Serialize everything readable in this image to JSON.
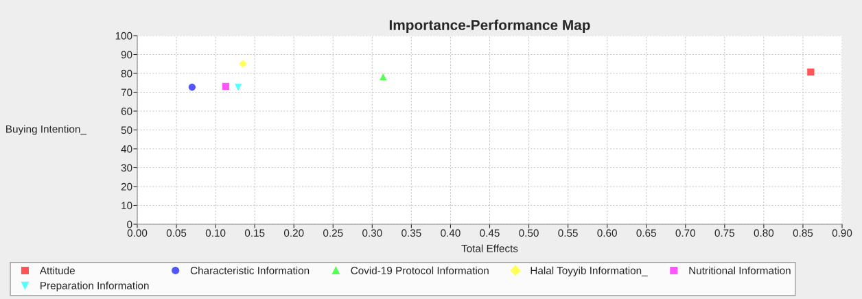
{
  "chart_data": {
    "type": "scatter",
    "title": "Importance-Performance Map",
    "xlabel": "Total Effects",
    "ylabel": "Buying Intention_",
    "xlim": [
      0,
      0.9
    ],
    "ylim": [
      0,
      100
    ],
    "xticks": [
      {
        "value": 0,
        "label": "0.00"
      },
      {
        "value": 0.05,
        "label": "0.05"
      },
      {
        "value": 0.1,
        "label": "0.10"
      },
      {
        "value": 0.15,
        "label": "0.15"
      },
      {
        "value": 0.2,
        "label": "0.20"
      },
      {
        "value": 0.25,
        "label": "0.25"
      },
      {
        "value": 0.3,
        "label": "0.30"
      },
      {
        "value": 0.35,
        "label": "0.35"
      },
      {
        "value": 0.4,
        "label": "0.40"
      },
      {
        "value": 0.45,
        "label": "0.45"
      },
      {
        "value": 0.5,
        "label": "0.50"
      },
      {
        "value": 0.55,
        "label": "0.55"
      },
      {
        "value": 0.6,
        "label": "0.60"
      },
      {
        "value": 0.65,
        "label": "0.65"
      },
      {
        "value": 0.7,
        "label": "0.70"
      },
      {
        "value": 0.75,
        "label": "0.75"
      },
      {
        "value": 0.8,
        "label": "0.80"
      },
      {
        "value": 0.85,
        "label": "0.85"
      },
      {
        "value": 0.9,
        "label": "0.90"
      }
    ],
    "yticks": [
      0,
      10,
      20,
      30,
      40,
      50,
      60,
      70,
      80,
      90,
      100
    ],
    "grid": true,
    "legend": "bottom",
    "series": [
      {
        "name": "Attitude",
        "color": "#ff5555",
        "marker": "square",
        "x": [
          0.86
        ],
        "values": [
          80.7
        ]
      },
      {
        "name": "Characteristic Information",
        "color": "#5555ff",
        "marker": "circle",
        "x": [
          0.07
        ],
        "values": [
          72.7
        ]
      },
      {
        "name": "Covid-19 Protocol Information",
        "color": "#55ff55",
        "marker": "triangle",
        "x": [
          0.314
        ],
        "values": [
          78.2
        ]
      },
      {
        "name": "Halal Toyyib Information_",
        "color": "#ffff55",
        "marker": "diamond",
        "x": [
          0.135
        ],
        "values": [
          85.1
        ]
      },
      {
        "name": "Nutritional Information",
        "color": "#ff55ff",
        "marker": "square",
        "x": [
          0.113
        ],
        "values": [
          73.1
        ]
      },
      {
        "name": "Preparation Information",
        "color": "#55ffff",
        "marker": "triangle_down",
        "x": [
          0.129
        ],
        "values": [
          72.6
        ]
      }
    ]
  }
}
